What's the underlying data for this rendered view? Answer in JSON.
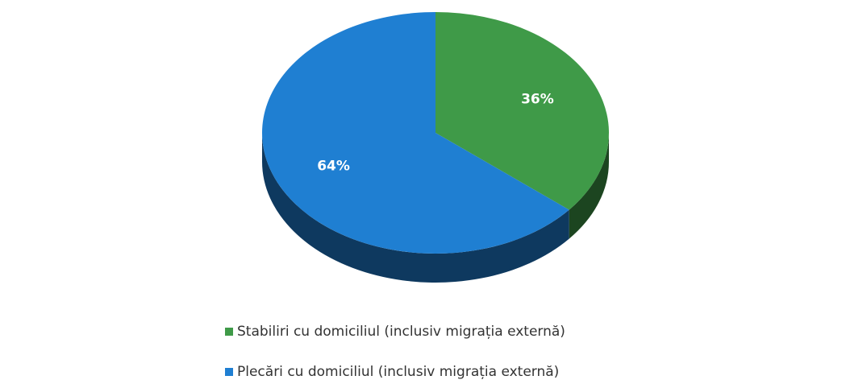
{
  "chart_data": {
    "type": "pie",
    "categories": [
      "Stabiliri cu domiciliul (inclusiv  migrația externă)",
      "Plecări cu domiciliul (inclusiv migrația externă)"
    ],
    "values": [
      36,
      64
    ],
    "value_labels": [
      "36%",
      "64%"
    ],
    "colors": [
      "#3f9a48",
      "#1f7fd2"
    ],
    "legend": "bottom"
  }
}
